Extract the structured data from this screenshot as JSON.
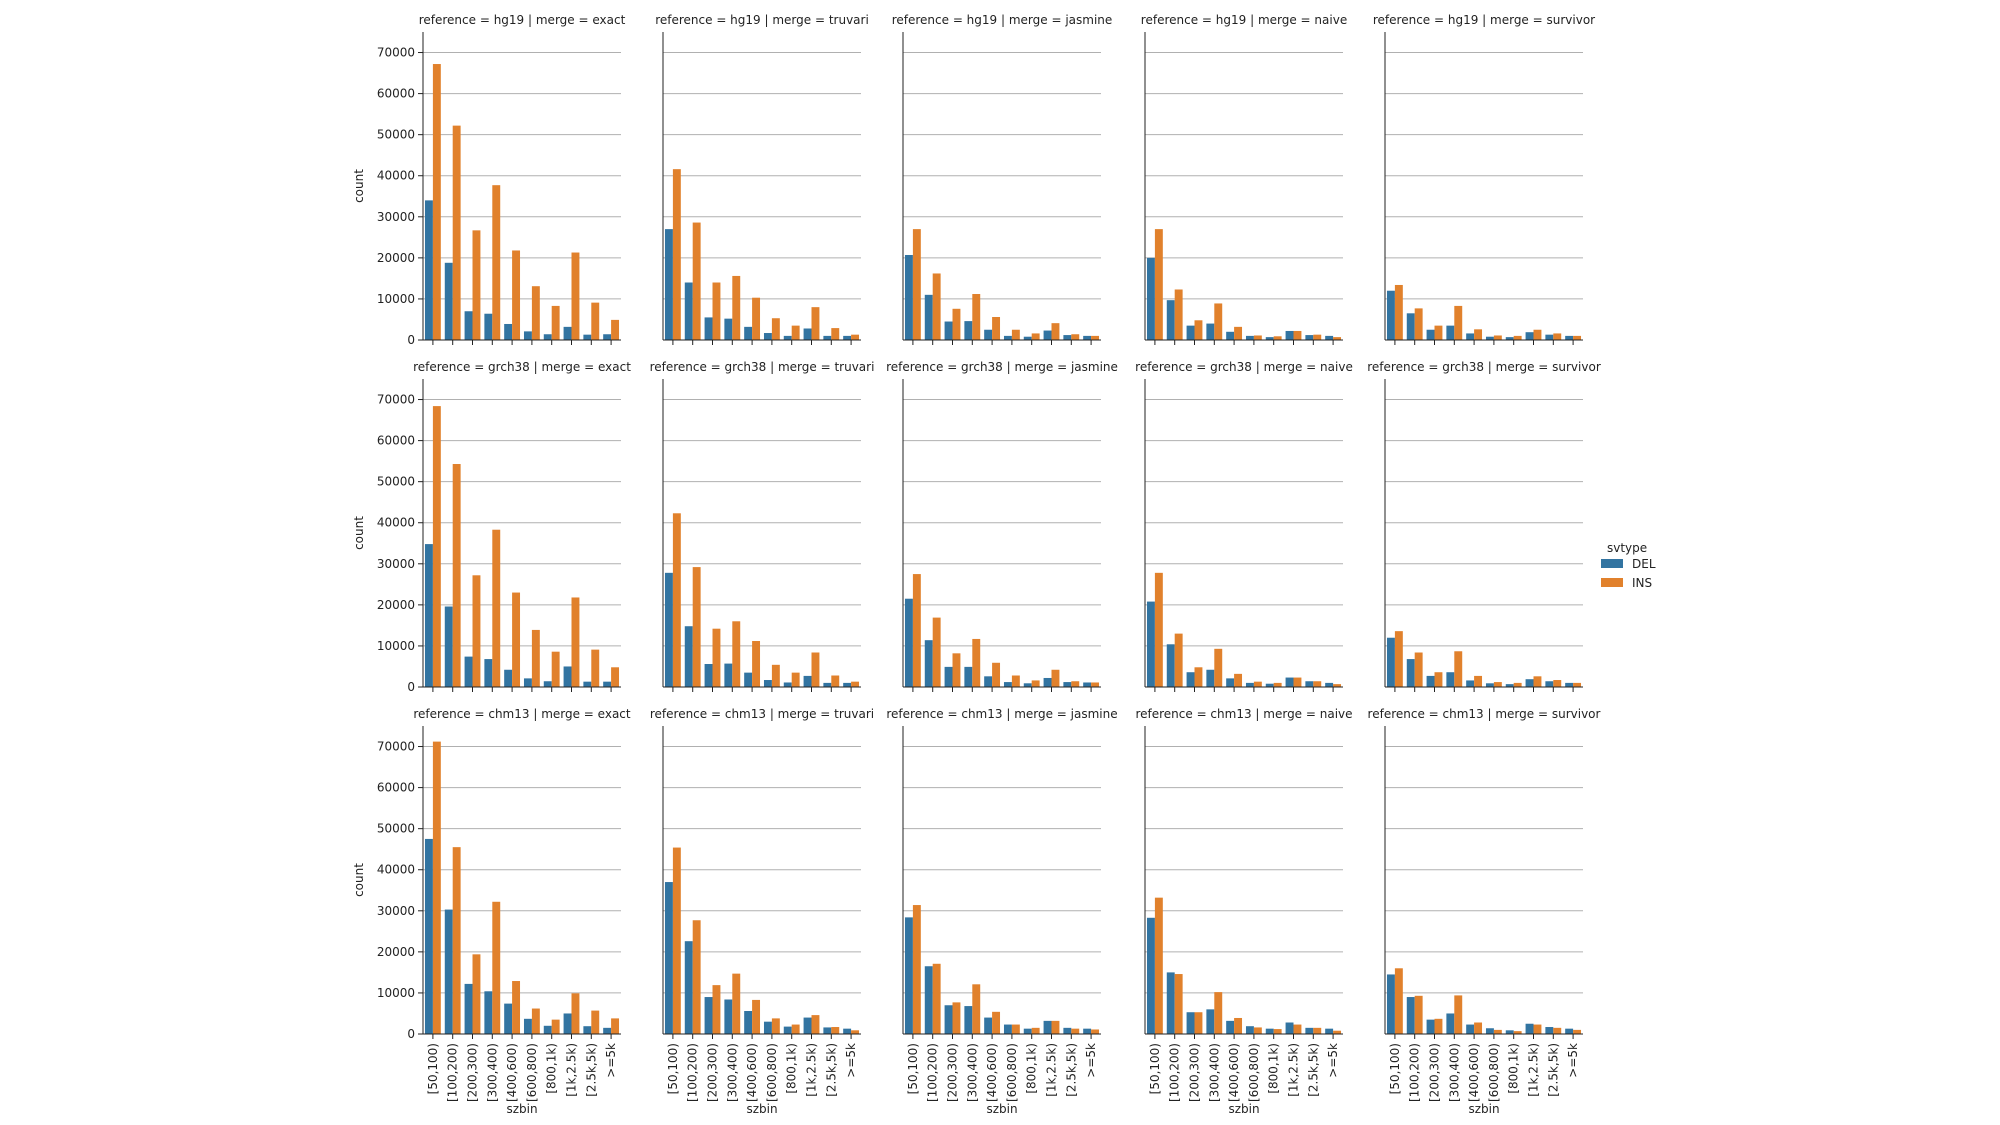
{
  "figure": {
    "legend_title": "svtype",
    "legend_placement": "right-center"
  },
  "colors": {
    "DEL": "#3274a1",
    "INS": "#e1812c",
    "grid": "#b0b0b0",
    "axis": "#222222"
  },
  "chart_data": {
    "type": "bar",
    "layout": "facet-grid 3 rows x 5 columns, shared y axis",
    "xlabel": "szbin",
    "ylabel": "count",
    "ylim": [
      0,
      75000
    ],
    "yticks": [
      0,
      10000,
      20000,
      30000,
      40000,
      50000,
      60000,
      70000
    ],
    "grid": "horizontal",
    "legend": "right",
    "categories": [
      "[50,100)",
      "[100,200)",
      "[200,300)",
      "[300,400)",
      "[400,600)",
      "[600,800)",
      "[800,1k)",
      "[1k,2.5k)",
      "[2.5k,5k)",
      ">=5k"
    ],
    "series_names": [
      "DEL",
      "INS"
    ],
    "panels": [
      {
        "title": "reference = hg19 | merge = exact",
        "series": [
          {
            "name": "DEL",
            "values": [
              34000,
              18800,
              7000,
              6400,
              3900,
              2100,
              1400,
              3200,
              1300,
              1400
            ]
          },
          {
            "name": "INS",
            "values": [
              67200,
              52200,
              26700,
              37700,
              21800,
              13100,
              8300,
              21300,
              9100,
              4900
            ]
          }
        ]
      },
      {
        "title": "reference = hg19 | merge = truvari",
        "series": [
          {
            "name": "DEL",
            "values": [
              27000,
              14000,
              5500,
              5200,
              3200,
              1700,
              1000,
              2800,
              1000,
              1000
            ]
          },
          {
            "name": "INS",
            "values": [
              41600,
              28600,
              14000,
              15600,
              10300,
              5300,
              3500,
              8000,
              2900,
              1300
            ]
          }
        ]
      },
      {
        "title": "reference = hg19 | merge = jasmine",
        "series": [
          {
            "name": "DEL",
            "values": [
              20700,
              11000,
              4500,
              4600,
              2500,
              1000,
              800,
              2300,
              1200,
              1000
            ]
          },
          {
            "name": "INS",
            "values": [
              27000,
              16200,
              7600,
              11200,
              5600,
              2500,
              1600,
              4100,
              1400,
              1000
            ]
          }
        ]
      },
      {
        "title": "reference = hg19 | merge = naive",
        "series": [
          {
            "name": "DEL",
            "values": [
              20000,
              9700,
              3500,
              4000,
              2000,
              1000,
              700,
              2200,
              1200,
              1000
            ]
          },
          {
            "name": "INS",
            "values": [
              27000,
              12300,
              4800,
              8900,
              3200,
              1100,
              900,
              2200,
              1300,
              700
            ]
          }
        ]
      },
      {
        "title": "reference = hg19 | merge = survivor",
        "series": [
          {
            "name": "DEL",
            "values": [
              12000,
              6500,
              2500,
              3500,
              1600,
              800,
              700,
              1900,
              1300,
              1000
            ]
          },
          {
            "name": "INS",
            "values": [
              13400,
              7700,
              3500,
              8300,
              2600,
              1100,
              1000,
              2500,
              1600,
              1000
            ]
          }
        ]
      },
      {
        "title": "reference = grch38 | merge = exact",
        "series": [
          {
            "name": "DEL",
            "values": [
              34800,
              19600,
              7400,
              6800,
              4200,
              2100,
              1400,
              5000,
              1300,
              1300
            ]
          },
          {
            "name": "INS",
            "values": [
              68400,
              54300,
              27200,
              38300,
              23000,
              13900,
              8600,
              21800,
              9100,
              4800
            ]
          }
        ]
      },
      {
        "title": "reference = grch38 | merge = truvari",
        "series": [
          {
            "name": "DEL",
            "values": [
              27800,
              14800,
              5600,
              5700,
              3500,
              1700,
              1100,
              2700,
              1000,
              1000
            ]
          },
          {
            "name": "INS",
            "values": [
              42300,
              29200,
              14200,
              16000,
              11200,
              5400,
              3500,
              8400,
              2800,
              1300
            ]
          }
        ]
      },
      {
        "title": "reference = grch38 | merge = jasmine",
        "series": [
          {
            "name": "DEL",
            "values": [
              21500,
              11400,
              4900,
              4900,
              2600,
              1200,
              900,
              2200,
              1200,
              1100
            ]
          },
          {
            "name": "INS",
            "values": [
              27500,
              16900,
              8200,
              11700,
              5900,
              2800,
              1600,
              4200,
              1400,
              1100
            ]
          }
        ]
      },
      {
        "title": "reference = grch38 | merge = naive",
        "series": [
          {
            "name": "DEL",
            "values": [
              20800,
              10400,
              3600,
              4200,
              2100,
              1000,
              800,
              2300,
              1400,
              1000
            ]
          },
          {
            "name": "INS",
            "values": [
              27800,
              13000,
              4800,
              9300,
              3200,
              1300,
              1000,
              2300,
              1400,
              700
            ]
          }
        ]
      },
      {
        "title": "reference = grch38 | merge = survivor",
        "series": [
          {
            "name": "DEL",
            "values": [
              12000,
              6800,
              2700,
              3600,
              1600,
              900,
              700,
              1900,
              1400,
              1000
            ]
          },
          {
            "name": "INS",
            "values": [
              13600,
              8400,
              3600,
              8700,
              2700,
              1200,
              1000,
              2600,
              1700,
              1000
            ]
          }
        ]
      },
      {
        "title": "reference = chm13 | merge = exact",
        "series": [
          {
            "name": "DEL",
            "values": [
              47500,
              30300,
              12200,
              10400,
              7400,
              3700,
              2000,
              5000,
              1900,
              1500
            ]
          },
          {
            "name": "INS",
            "values": [
              71200,
              45500,
              19400,
              32200,
              12900,
              6200,
              3500,
              9900,
              5700,
              3800
            ]
          }
        ]
      },
      {
        "title": "reference = chm13 | merge = truvari",
        "series": [
          {
            "name": "DEL",
            "values": [
              37000,
              22600,
              9000,
              8400,
              5600,
              3000,
              1800,
              4000,
              1600,
              1300
            ]
          },
          {
            "name": "INS",
            "values": [
              45400,
              27700,
              11900,
              14700,
              8300,
              3800,
              2300,
              4600,
              1700,
              900
            ]
          }
        ]
      },
      {
        "title": "reference = chm13 | merge = jasmine",
        "series": [
          {
            "name": "DEL",
            "values": [
              28400,
              16500,
              7000,
              6800,
              4000,
              2300,
              1300,
              3200,
              1500,
              1300
            ]
          },
          {
            "name": "INS",
            "values": [
              31400,
              17100,
              7700,
              12100,
              5400,
              2300,
              1500,
              3200,
              1300,
              1100
            ]
          }
        ]
      },
      {
        "title": "reference = chm13 | merge = naive",
        "series": [
          {
            "name": "DEL",
            "values": [
              28300,
              15000,
              5300,
              6000,
              3200,
              1900,
              1300,
              2800,
              1500,
              1300
            ]
          },
          {
            "name": "INS",
            "values": [
              33200,
              14600,
              5300,
              10200,
              3900,
              1600,
              1200,
              2300,
              1500,
              800
            ]
          }
        ]
      },
      {
        "title": "reference = chm13 | merge = survivor",
        "series": [
          {
            "name": "DEL",
            "values": [
              14500,
              9000,
              3500,
              5000,
              2300,
              1400,
              900,
              2500,
              1700,
              1300
            ]
          },
          {
            "name": "INS",
            "values": [
              16000,
              9300,
              3700,
              9400,
              2800,
              1000,
              700,
              2300,
              1500,
              1000
            ]
          }
        ]
      }
    ]
  }
}
